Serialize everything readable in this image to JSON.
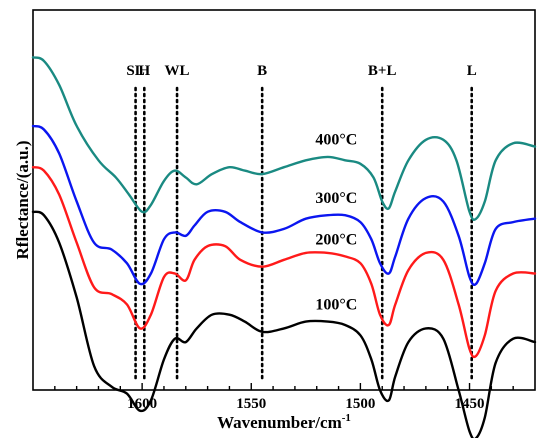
{
  "chart_data": {
    "type": "line",
    "xlabel": "Wavenumber/cm",
    "xlabel_superscript": "-1",
    "ylabel": "Rflectance/(a.u.)",
    "xlim": [
      1420,
      1650
    ],
    "x_reversed": true,
    "x_ticks": [
      1600,
      1550,
      1500,
      1450
    ],
    "x_tick_labels": [
      "1600",
      "1550",
      "1500",
      "1450"
    ],
    "y_tick_labels_shown": false,
    "grid": false,
    "legend": "none",
    "annotations": [
      {
        "label": "SL",
        "x": 1603
      },
      {
        "label": "H",
        "x": 1599
      },
      {
        "label": "WL",
        "x": 1584
      },
      {
        "label": "B",
        "x": 1545
      },
      {
        "label": "B+L",
        "x": 1490
      },
      {
        "label": "L",
        "x": 1449
      }
    ],
    "series": [
      {
        "name": "400°C",
        "color": "#1a8a82",
        "label_x": 1511,
        "points": [
          [
            1650,
            0.92
          ],
          [
            1645,
            0.91
          ],
          [
            1638,
            0.84
          ],
          [
            1630,
            0.72
          ],
          [
            1620,
            0.62
          ],
          [
            1612,
            0.57
          ],
          [
            1606,
            0.52
          ],
          [
            1600,
            0.47
          ],
          [
            1596,
            0.49
          ],
          [
            1590,
            0.56
          ],
          [
            1585,
            0.59
          ],
          [
            1580,
            0.57
          ],
          [
            1575,
            0.55
          ],
          [
            1568,
            0.58
          ],
          [
            1560,
            0.6
          ],
          [
            1553,
            0.59
          ],
          [
            1545,
            0.58
          ],
          [
            1535,
            0.6
          ],
          [
            1525,
            0.62
          ],
          [
            1515,
            0.63
          ],
          [
            1507,
            0.62
          ],
          [
            1500,
            0.61
          ],
          [
            1494,
            0.57
          ],
          [
            1490,
            0.5
          ],
          [
            1487,
            0.48
          ],
          [
            1484,
            0.53
          ],
          [
            1478,
            0.62
          ],
          [
            1470,
            0.68
          ],
          [
            1462,
            0.68
          ],
          [
            1456,
            0.62
          ],
          [
            1450,
            0.47
          ],
          [
            1447,
            0.45
          ],
          [
            1443,
            0.5
          ],
          [
            1438,
            0.62
          ],
          [
            1430,
            0.67
          ],
          [
            1420,
            0.66
          ]
        ]
      },
      {
        "name": "300°C",
        "color": "#0b16f0",
        "label_x": 1511,
        "points": [
          [
            1650,
            0.72
          ],
          [
            1645,
            0.71
          ],
          [
            1638,
            0.64
          ],
          [
            1630,
            0.5
          ],
          [
            1622,
            0.38
          ],
          [
            1614,
            0.36
          ],
          [
            1607,
            0.32
          ],
          [
            1601,
            0.26
          ],
          [
            1596,
            0.29
          ],
          [
            1590,
            0.39
          ],
          [
            1585,
            0.41
          ],
          [
            1580,
            0.4
          ],
          [
            1576,
            0.43
          ],
          [
            1570,
            0.47
          ],
          [
            1562,
            0.47
          ],
          [
            1555,
            0.44
          ],
          [
            1545,
            0.41
          ],
          [
            1535,
            0.42
          ],
          [
            1525,
            0.45
          ],
          [
            1515,
            0.46
          ],
          [
            1507,
            0.46
          ],
          [
            1500,
            0.44
          ],
          [
            1495,
            0.39
          ],
          [
            1491,
            0.32
          ],
          [
            1487,
            0.29
          ],
          [
            1484,
            0.34
          ],
          [
            1478,
            0.45
          ],
          [
            1470,
            0.51
          ],
          [
            1462,
            0.5
          ],
          [
            1455,
            0.4
          ],
          [
            1450,
            0.28
          ],
          [
            1447,
            0.26
          ],
          [
            1443,
            0.32
          ],
          [
            1438,
            0.42
          ],
          [
            1430,
            0.44
          ],
          [
            1420,
            0.45
          ]
        ]
      },
      {
        "name": "200°C",
        "color": "#ff1a1a",
        "label_x": 1511,
        "points": [
          [
            1650,
            0.6
          ],
          [
            1645,
            0.59
          ],
          [
            1638,
            0.52
          ],
          [
            1630,
            0.38
          ],
          [
            1622,
            0.25
          ],
          [
            1614,
            0.23
          ],
          [
            1607,
            0.2
          ],
          [
            1601,
            0.13
          ],
          [
            1596,
            0.17
          ],
          [
            1590,
            0.28
          ],
          [
            1585,
            0.29
          ],
          [
            1580,
            0.27
          ],
          [
            1576,
            0.33
          ],
          [
            1570,
            0.37
          ],
          [
            1562,
            0.37
          ],
          [
            1555,
            0.33
          ],
          [
            1545,
            0.31
          ],
          [
            1535,
            0.33
          ],
          [
            1525,
            0.35
          ],
          [
            1515,
            0.35
          ],
          [
            1507,
            0.34
          ],
          [
            1500,
            0.32
          ],
          [
            1495,
            0.26
          ],
          [
            1491,
            0.17
          ],
          [
            1487,
            0.14
          ],
          [
            1484,
            0.2
          ],
          [
            1478,
            0.3
          ],
          [
            1470,
            0.35
          ],
          [
            1462,
            0.33
          ],
          [
            1455,
            0.2
          ],
          [
            1450,
            0.07
          ],
          [
            1447,
            0.05
          ],
          [
            1443,
            0.11
          ],
          [
            1438,
            0.24
          ],
          [
            1430,
            0.29
          ],
          [
            1420,
            0.29
          ]
        ]
      },
      {
        "name": "100°C",
        "color": "#000000",
        "label_x": 1511,
        "points": [
          [
            1650,
            0.47
          ],
          [
            1645,
            0.46
          ],
          [
            1638,
            0.38
          ],
          [
            1630,
            0.22
          ],
          [
            1622,
            0.02
          ],
          [
            1614,
            -0.04
          ],
          [
            1607,
            -0.06
          ],
          [
            1601,
            -0.11
          ],
          [
            1596,
            -0.08
          ],
          [
            1590,
            0.04
          ],
          [
            1585,
            0.1
          ],
          [
            1580,
            0.09
          ],
          [
            1575,
            0.13
          ],
          [
            1568,
            0.17
          ],
          [
            1560,
            0.17
          ],
          [
            1553,
            0.15
          ],
          [
            1545,
            0.12
          ],
          [
            1535,
            0.13
          ],
          [
            1525,
            0.15
          ],
          [
            1515,
            0.15
          ],
          [
            1507,
            0.14
          ],
          [
            1500,
            0.11
          ],
          [
            1495,
            0.04
          ],
          [
            1491,
            -0.05
          ],
          [
            1487,
            -0.08
          ],
          [
            1484,
            -0.01
          ],
          [
            1478,
            0.09
          ],
          [
            1470,
            0.13
          ],
          [
            1462,
            0.1
          ],
          [
            1455,
            -0.05
          ],
          [
            1450,
            -0.17
          ],
          [
            1447,
            -0.19
          ],
          [
            1443,
            -0.13
          ],
          [
            1438,
            0.03
          ],
          [
            1430,
            0.1
          ],
          [
            1420,
            0.09
          ]
        ]
      }
    ]
  }
}
